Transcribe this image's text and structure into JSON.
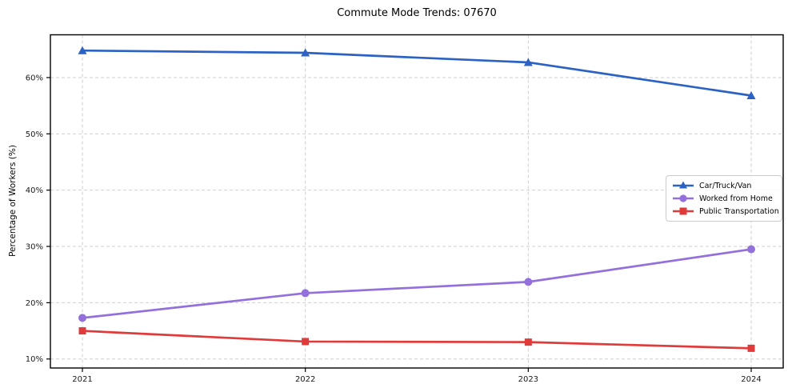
{
  "title": "Commute Mode Trends: 07670",
  "chart_data": {
    "type": "line",
    "title": "Commute Mode Trends: 07670",
    "xlabel": "",
    "ylabel": "Percentage of Workers (%)",
    "categories": [
      "2021",
      "2022",
      "2023",
      "2024"
    ],
    "series": [
      {
        "name": "Car/Truck/Van",
        "marker": "triangle",
        "color": "#2b62c4",
        "values": [
          64.8,
          64.4,
          62.7,
          56.8
        ]
      },
      {
        "name": "Worked from Home",
        "marker": "circle",
        "color": "#9370db",
        "values": [
          17.3,
          21.7,
          23.7,
          29.5
        ]
      },
      {
        "name": "Public Transportation",
        "marker": "square",
        "color": "#e03b3b",
        "values": [
          15.0,
          13.1,
          13.0,
          11.9
        ]
      }
    ],
    "ylim": [
      8.4,
      67.6
    ],
    "yticks": [
      10,
      20,
      30,
      40,
      50,
      60
    ],
    "ytick_labels": [
      "10%",
      "20%",
      "30%",
      "40%",
      "50%",
      "60%"
    ],
    "grid": true,
    "grid_style": "dashed",
    "legend_position": "center right",
    "colors": {
      "grid": "#cfcfcf",
      "axis_border": "#000000",
      "tick_text": "#1a1a1a",
      "background": "#ffffff"
    }
  }
}
